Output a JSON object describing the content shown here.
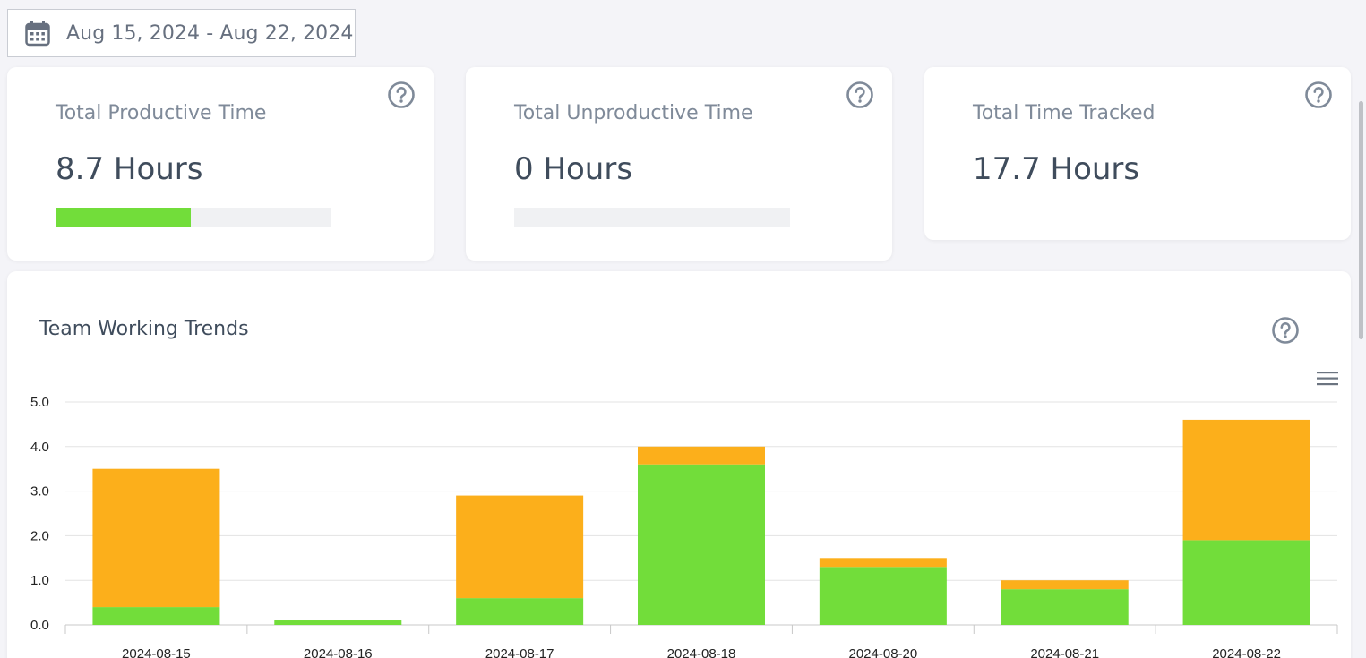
{
  "date_range": {
    "label": "Aug 15, 2024 - Aug 22, 2024",
    "icon": "calendar-icon"
  },
  "stats": [
    {
      "title": "Total Productive Time",
      "value": "8.7 Hours",
      "progress": 0.49,
      "has_progress": true,
      "icon": "help-icon"
    },
    {
      "title": "Total Unproductive Time",
      "value": "0 Hours",
      "progress": 0,
      "has_progress": true,
      "icon": "help-icon"
    },
    {
      "title": "Total Time Tracked",
      "value": "17.7 Hours",
      "has_progress": false,
      "icon": "help-icon"
    }
  ],
  "chart": {
    "title": "Team Working Trends",
    "help_icon": "help-icon",
    "menu_icon": "hamburger-menu-icon"
  },
  "colors": {
    "productive": "#72dd3a",
    "other": "#fcaf1b",
    "progress_fill": "#72dd3a",
    "progress_track": "#f0f1f3"
  },
  "chart_data": {
    "type": "bar",
    "stacked": true,
    "title": "Team Working Trends",
    "xlabel": "",
    "ylabel": "",
    "ylim": [
      0,
      5
    ],
    "y_ticks": [
      "0.0",
      "1.0",
      "2.0",
      "3.0",
      "4.0",
      "5.0"
    ],
    "grid": true,
    "categories": [
      "2024-08-15",
      "2024-08-16",
      "2024-08-17",
      "2024-08-18",
      "2024-08-20",
      "2024-08-21",
      "2024-08-22"
    ],
    "series": [
      {
        "values": [
          0.4,
          0.1,
          0.6,
          3.6,
          1.3,
          0.8,
          1.9
        ],
        "color": "#72dd3a"
      },
      {
        "values": [
          3.1,
          0.0,
          2.3,
          0.4,
          0.2,
          0.2,
          2.7
        ],
        "color": "#fcaf1b"
      }
    ]
  }
}
